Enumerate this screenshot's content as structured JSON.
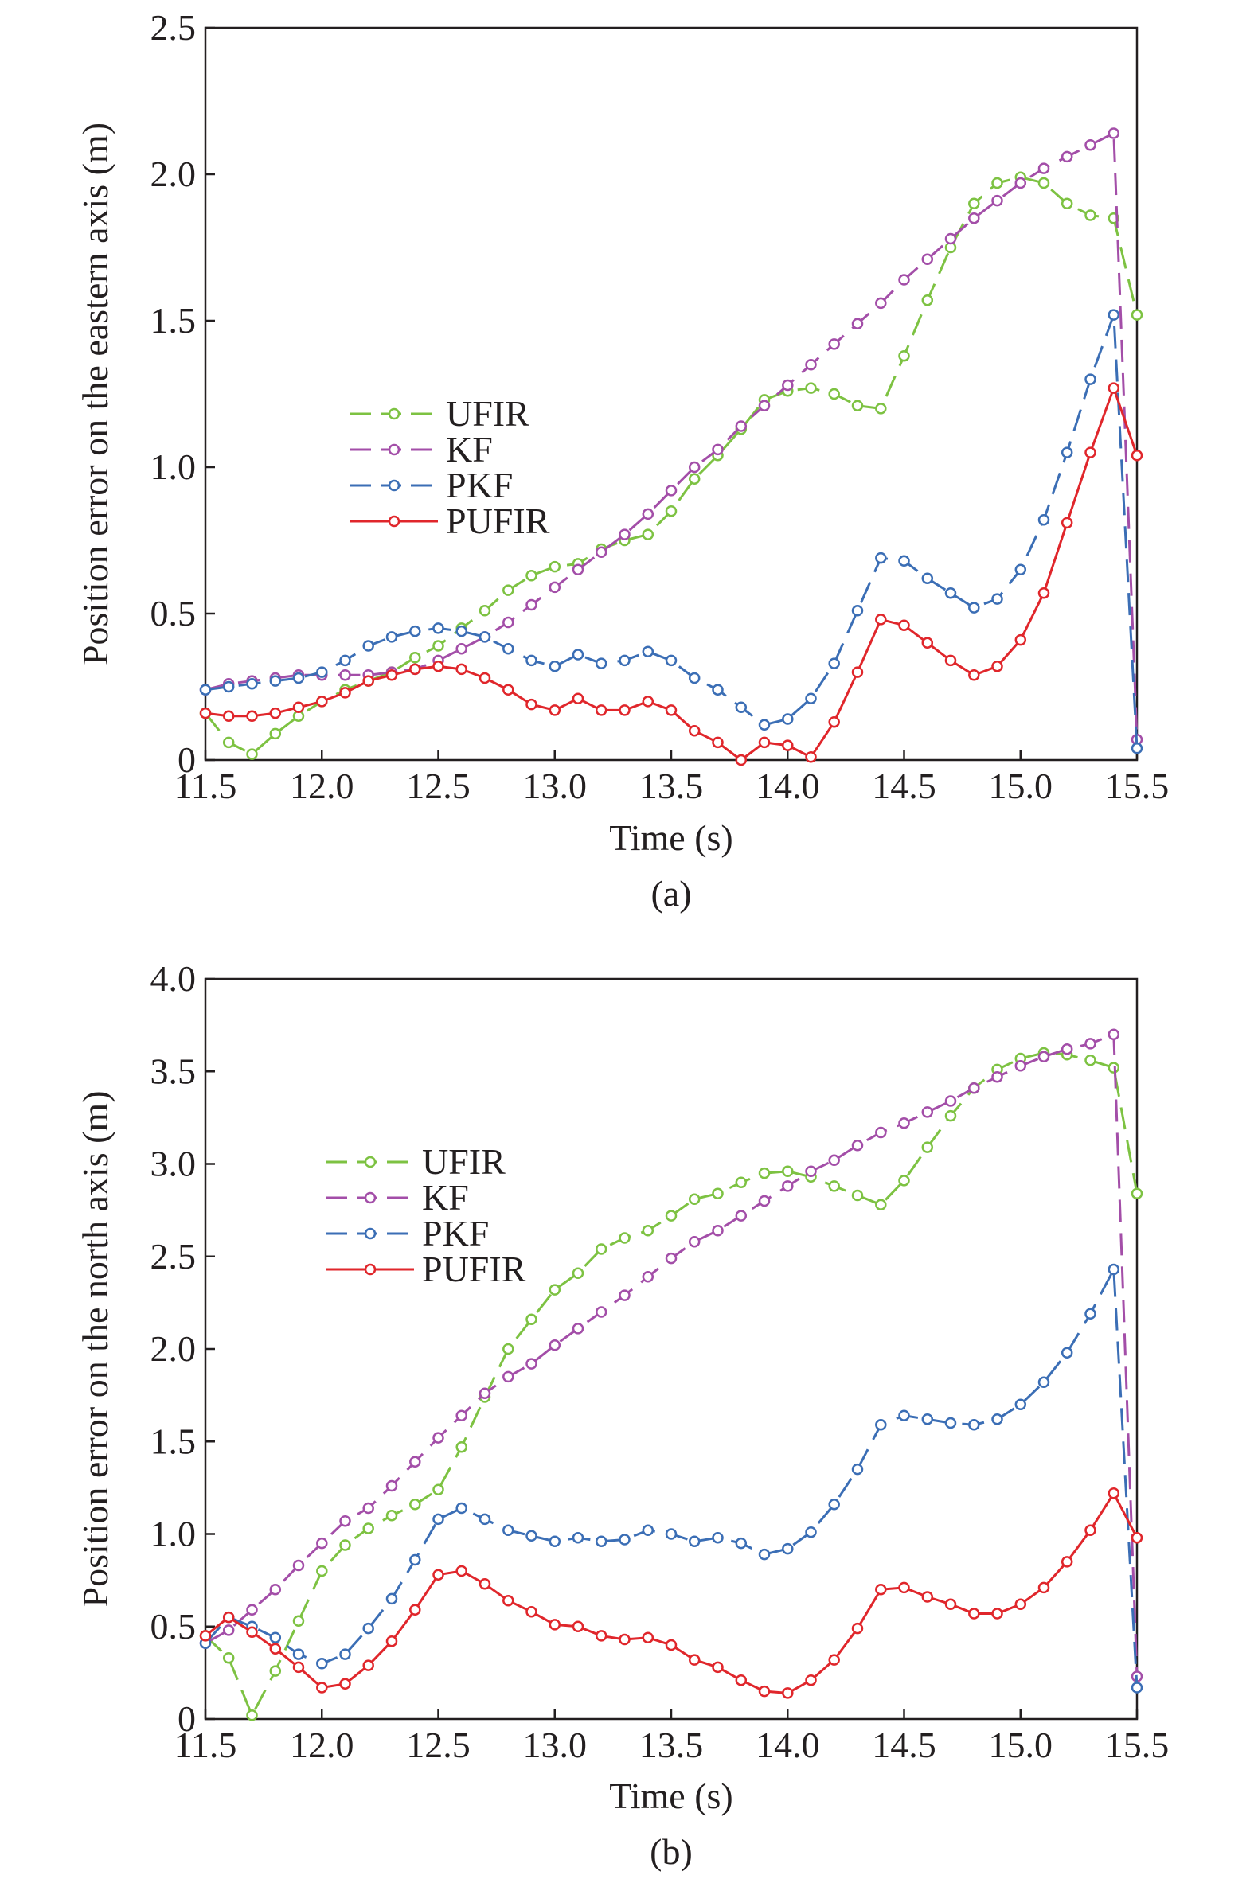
{
  "colors": {
    "UFIR": "#7dc242",
    "KF": "#a34ea8",
    "PKF": "#3b6eb5",
    "PUFIR": "#e0262b",
    "axis": "#231f20"
  },
  "chart_data": [
    {
      "type": "line",
      "caption": "(a)",
      "xlabel": "Time (s)",
      "ylabel": "Position error on the eastern axis (m)",
      "xlim": [
        11.5,
        15.5
      ],
      "ylim": [
        0,
        2.5
      ],
      "xticks": [
        "11.5",
        "12.0",
        "12.5",
        "13.0",
        "13.5",
        "14.0",
        "14.5",
        "15.0",
        "15.5"
      ],
      "yticks": [
        "0",
        "0.5",
        "1.0",
        "1.5",
        "2.0",
        "2.5"
      ],
      "legend_position": "center-left",
      "x": [
        11.5,
        11.6,
        11.7,
        11.8,
        11.9,
        12.0,
        12.1,
        12.2,
        12.3,
        12.4,
        12.5,
        12.6,
        12.7,
        12.8,
        12.9,
        13.0,
        13.1,
        13.2,
        13.3,
        13.4,
        13.5,
        13.6,
        13.7,
        13.8,
        13.9,
        14.0,
        14.1,
        14.2,
        14.3,
        14.4,
        14.5,
        14.6,
        14.7,
        14.8,
        14.9,
        15.0,
        15.1,
        15.2,
        15.3,
        15.4,
        15.5
      ],
      "series": [
        {
          "name": "UFIR",
          "dashed": true,
          "values": [
            0.16,
            0.06,
            0.02,
            0.09,
            0.15,
            0.2,
            0.24,
            0.27,
            0.3,
            0.35,
            0.39,
            0.45,
            0.51,
            0.58,
            0.63,
            0.66,
            0.67,
            0.72,
            0.75,
            0.77,
            0.85,
            0.96,
            1.04,
            1.13,
            1.23,
            1.26,
            1.27,
            1.25,
            1.21,
            1.2,
            1.38,
            1.57,
            1.75,
            1.9,
            1.97,
            1.99,
            1.97,
            1.9,
            1.86,
            1.85,
            1.52
          ]
        },
        {
          "name": "KF",
          "dashed": true,
          "values": [
            0.24,
            0.26,
            0.27,
            0.28,
            0.29,
            0.29,
            0.29,
            0.29,
            0.3,
            0.31,
            0.34,
            0.38,
            0.42,
            0.47,
            0.53,
            0.59,
            0.65,
            0.71,
            0.77,
            0.84,
            0.92,
            1.0,
            1.06,
            1.14,
            1.21,
            1.28,
            1.35,
            1.42,
            1.49,
            1.56,
            1.64,
            1.71,
            1.78,
            1.85,
            1.91,
            1.97,
            2.02,
            2.06,
            2.1,
            2.14,
            0.07
          ]
        },
        {
          "name": "PKF",
          "dashed": true,
          "values": [
            0.24,
            0.25,
            0.26,
            0.27,
            0.28,
            0.3,
            0.34,
            0.39,
            0.42,
            0.44,
            0.45,
            0.44,
            0.42,
            0.38,
            0.34,
            0.32,
            0.36,
            0.33,
            0.34,
            0.37,
            0.34,
            0.28,
            0.24,
            0.18,
            0.12,
            0.14,
            0.21,
            0.33,
            0.51,
            0.69,
            0.68,
            0.62,
            0.57,
            0.52,
            0.55,
            0.65,
            0.82,
            1.05,
            1.3,
            1.52,
            0.04
          ]
        },
        {
          "name": "PUFIR",
          "dashed": false,
          "values": [
            0.16,
            0.15,
            0.15,
            0.16,
            0.18,
            0.2,
            0.23,
            0.27,
            0.29,
            0.31,
            0.32,
            0.31,
            0.28,
            0.24,
            0.19,
            0.17,
            0.21,
            0.17,
            0.17,
            0.2,
            0.17,
            0.1,
            0.06,
            0.0,
            0.06,
            0.05,
            0.01,
            0.13,
            0.3,
            0.48,
            0.46,
            0.4,
            0.34,
            0.29,
            0.32,
            0.41,
            0.57,
            0.81,
            1.05,
            1.27,
            1.04
          ]
        }
      ]
    },
    {
      "type": "line",
      "caption": "(b)",
      "xlabel": "Time (s)",
      "ylabel": "Position error on the north axis (m)",
      "xlim": [
        11.5,
        15.5
      ],
      "ylim": [
        0,
        4.0
      ],
      "xticks": [
        "11.5",
        "12.0",
        "12.5",
        "13.0",
        "13.5",
        "14.0",
        "14.5",
        "15.0",
        "15.5"
      ],
      "yticks": [
        "0",
        "0.5",
        "1.0",
        "1.5",
        "2.0",
        "2.5",
        "3.0",
        "3.5",
        "4.0"
      ],
      "legend_position": "center-left",
      "x": [
        11.5,
        11.6,
        11.7,
        11.8,
        11.9,
        12.0,
        12.1,
        12.2,
        12.3,
        12.4,
        12.5,
        12.6,
        12.7,
        12.8,
        12.9,
        13.0,
        13.1,
        13.2,
        13.3,
        13.4,
        13.5,
        13.6,
        13.7,
        13.8,
        13.9,
        14.0,
        14.1,
        14.2,
        14.3,
        14.4,
        14.5,
        14.6,
        14.7,
        14.8,
        14.9,
        15.0,
        15.1,
        15.2,
        15.3,
        15.4,
        15.5
      ],
      "series": [
        {
          "name": "UFIR",
          "dashed": true,
          "values": [
            0.45,
            0.33,
            0.02,
            0.26,
            0.53,
            0.8,
            0.94,
            1.03,
            1.1,
            1.16,
            1.24,
            1.47,
            1.74,
            2.0,
            2.16,
            2.32,
            2.41,
            2.54,
            2.6,
            2.64,
            2.72,
            2.81,
            2.84,
            2.9,
            2.95,
            2.96,
            2.93,
            2.88,
            2.83,
            2.78,
            2.91,
            3.09,
            3.26,
            3.41,
            3.51,
            3.57,
            3.6,
            3.59,
            3.56,
            3.52,
            2.84
          ]
        },
        {
          "name": "KF",
          "dashed": true,
          "values": [
            0.41,
            0.48,
            0.59,
            0.7,
            0.83,
            0.95,
            1.07,
            1.14,
            1.26,
            1.39,
            1.52,
            1.64,
            1.76,
            1.85,
            1.92,
            2.02,
            2.11,
            2.2,
            2.29,
            2.39,
            2.49,
            2.58,
            2.64,
            2.72,
            2.8,
            2.88,
            2.96,
            3.02,
            3.1,
            3.17,
            3.22,
            3.28,
            3.34,
            3.41,
            3.47,
            3.53,
            3.58,
            3.62,
            3.65,
            3.7,
            0.23
          ]
        },
        {
          "name": "PKF",
          "dashed": true,
          "values": [
            0.41,
            0.55,
            0.5,
            0.44,
            0.35,
            0.3,
            0.35,
            0.49,
            0.65,
            0.86,
            1.08,
            1.14,
            1.08,
            1.02,
            0.99,
            0.96,
            0.98,
            0.96,
            0.97,
            1.02,
            1.0,
            0.96,
            0.98,
            0.95,
            0.89,
            0.92,
            1.01,
            1.16,
            1.35,
            1.59,
            1.64,
            1.62,
            1.6,
            1.59,
            1.62,
            1.7,
            1.82,
            1.98,
            2.19,
            2.43,
            0.17
          ]
        },
        {
          "name": "PUFIR",
          "dashed": false,
          "values": [
            0.45,
            0.55,
            0.47,
            0.38,
            0.28,
            0.17,
            0.19,
            0.29,
            0.42,
            0.59,
            0.78,
            0.8,
            0.73,
            0.64,
            0.58,
            0.51,
            0.5,
            0.45,
            0.43,
            0.44,
            0.4,
            0.32,
            0.28,
            0.21,
            0.15,
            0.14,
            0.21,
            0.32,
            0.49,
            0.7,
            0.71,
            0.66,
            0.62,
            0.57,
            0.57,
            0.62,
            0.71,
            0.85,
            1.02,
            1.22,
            0.98
          ]
        }
      ]
    }
  ]
}
